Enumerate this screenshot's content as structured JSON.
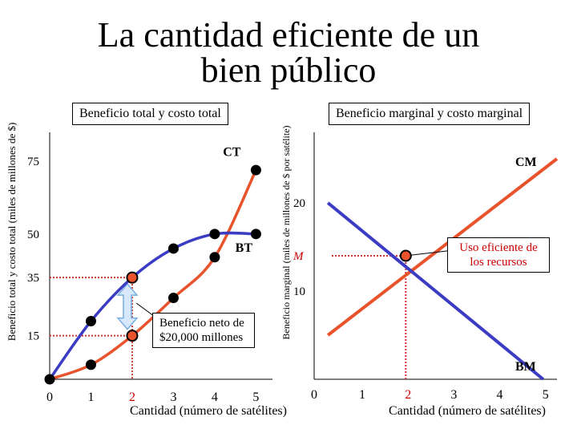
{
  "slide": {
    "title_line1": "La cantidad eficiente de un",
    "title_line2": "bien público"
  },
  "chart_data": [
    {
      "type": "line",
      "title": "Beneficio total y costo total",
      "xlabel": "Cantidad (número de satélites)",
      "ylabel": "Beneficio total y costo total (miles de millones de $)",
      "xlim": [
        0,
        5.4
      ],
      "ylim": [
        0,
        85
      ],
      "x_ticks": [
        "0",
        "1",
        "2",
        "3",
        "4",
        "5"
      ],
      "y_ticks": [
        {
          "value": 15,
          "label": "15"
        },
        {
          "value": 35,
          "label": "35"
        },
        {
          "value": 50,
          "label": "50"
        },
        {
          "value": 75,
          "label": "75"
        }
      ],
      "series": [
        {
          "name": "CT",
          "color": "#e8532c",
          "x": [
            0,
            1,
            2,
            3,
            4,
            5
          ],
          "y": [
            0,
            5,
            15,
            28,
            42,
            72
          ]
        },
        {
          "name": "BT",
          "color": "#3b3bc4",
          "x": [
            0,
            1,
            2,
            3,
            4,
            5
          ],
          "y": [
            0,
            20,
            35,
            45,
            50,
            50
          ]
        }
      ],
      "efficient_x": 2,
      "markers": [
        {
          "x": 2,
          "y": 35,
          "label": "35"
        },
        {
          "x": 2,
          "y": 15,
          "label": "15"
        }
      ],
      "annotation": "Beneficio neto de $20,000 millones"
    },
    {
      "type": "line",
      "title": "Beneficio marginal y costo marginal",
      "xlabel": "Cantidad (número de satélites)",
      "ylabel": "Beneficio marginal (miles de millones de $ por satélite)",
      "xlim": [
        0,
        5.3
      ],
      "ylim": [
        0,
        28
      ],
      "x_ticks": [
        "0",
        "1",
        "2",
        "3",
        "4",
        "5"
      ],
      "y_ticks": [
        {
          "value": 10,
          "label": "10"
        },
        {
          "value": 20,
          "label": "20"
        }
      ],
      "series": [
        {
          "name": "CM",
          "color": "#e8532c",
          "x": [
            0.3,
            5.3
          ],
          "y": [
            5,
            25
          ]
        },
        {
          "name": "BM",
          "color": "#3b3bc4",
          "x": [
            0.3,
            5
          ],
          "y": [
            20,
            0
          ]
        }
      ],
      "efficient_point": {
        "x": 2,
        "y": 14,
        "label": "M"
      },
      "annotation": "Uso eficiente de los recursos"
    }
  ]
}
